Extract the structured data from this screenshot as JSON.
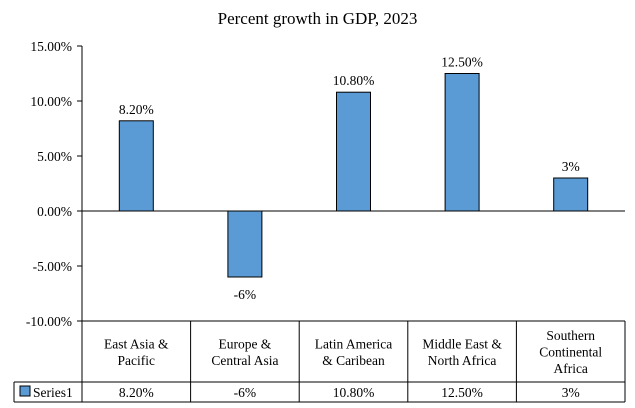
{
  "chart_data": {
    "type": "bar",
    "title": "Percent growth in GDP, 2023",
    "categories": [
      [
        "East Asia &",
        "Pacific"
      ],
      [
        "Europe &",
        "Central Asia"
      ],
      [
        "Latin America",
        "& Caribean"
      ],
      [
        "Middle East &",
        "North Africa"
      ],
      [
        "Southern",
        "Continental",
        "Africa"
      ]
    ],
    "series": [
      {
        "name": "Series1",
        "values": [
          8.2,
          -6,
          10.8,
          12.5,
          3
        ],
        "labels": [
          "8.20%",
          "-6%",
          "10.80%",
          "12.50%",
          "3%"
        ],
        "color": "#5B9BD5"
      }
    ],
    "ylim": [
      -10,
      15
    ],
    "yticks": [
      15,
      10,
      5,
      0,
      -5,
      -10
    ],
    "ytick_labels": [
      "15.00%",
      "10.00%",
      "5.00%",
      "0.00%",
      "-5.00%",
      "-10.00%"
    ],
    "data_table": true,
    "grid": false,
    "legend": "data-table"
  }
}
